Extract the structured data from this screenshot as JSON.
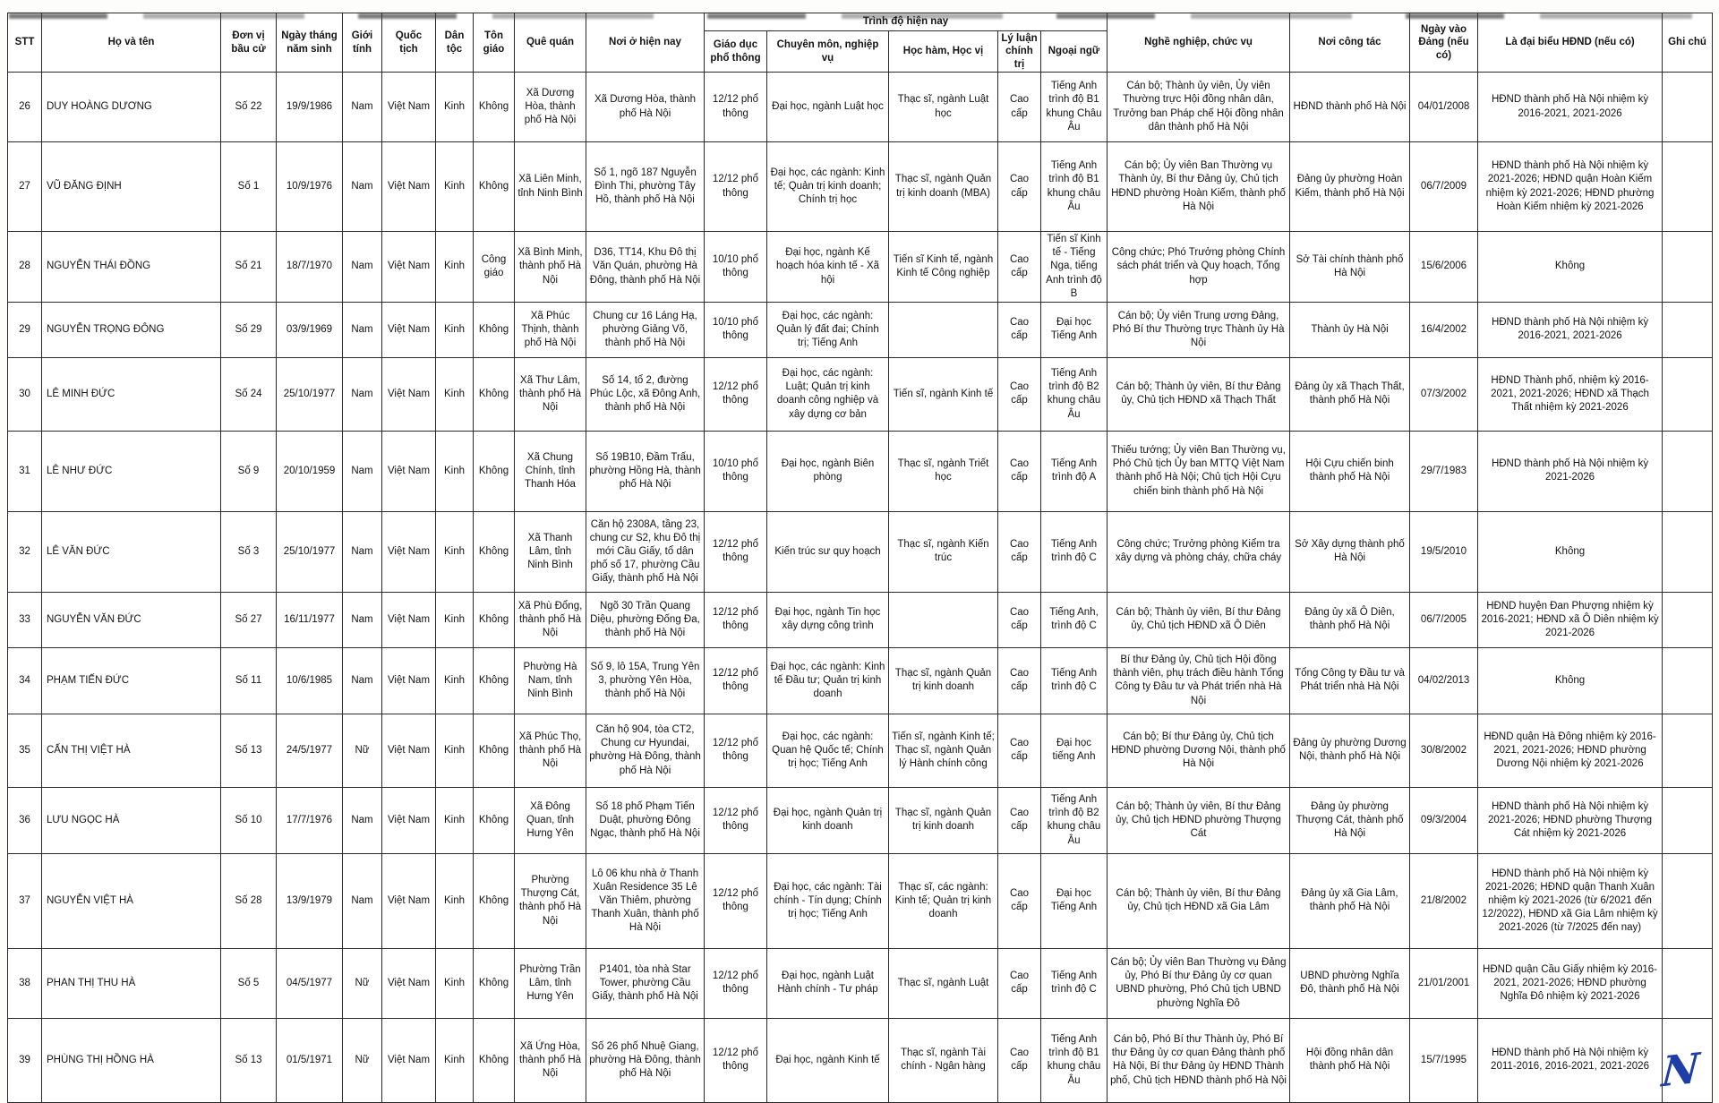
{
  "table": {
    "header": {
      "left": [
        "STT",
        "Họ và tên",
        "Đơn vị bầu cử",
        "Ngày tháng năm sinh",
        "Giới tính",
        "Quốc tịch",
        "Dân tộc",
        "Tôn giáo",
        "Quê quán",
        "Nơi ở hiện nay"
      ],
      "group_label": "Trình độ hiện nay",
      "group_children": [
        "Giáo dục phổ thông",
        "Chuyên môn, nghiệp vụ",
        "Học hàm, Học vị",
        "Lý luận chính trị",
        "Ngoại ngữ"
      ],
      "right": [
        "Nghề nghiệp, chức vụ",
        "Nơi công tác",
        "Ngày vào Đảng (nếu có)",
        "Là đại biểu HĐND (nếu có)",
        "Ghi chú"
      ]
    },
    "col_keys": [
      "stt",
      "ho-va-ten",
      "don-vi-bau-cu",
      "ngay-sinh",
      "gioi-tinh",
      "quoc-tich",
      "dan-toc",
      "ton-giao",
      "que-quan",
      "noi-o-hien-nay",
      "giao-duc-pho-thong",
      "chuyen-mon-nghiep-vu",
      "hoc-ham-hoc-vi",
      "ly-luan-chinh-tri",
      "ngoai-ngu",
      "nghe-nghiep-chuc-vu",
      "noi-cong-tac",
      "ngay-vao-dang",
      "dai-bieu-hdnd",
      "ghi-chu"
    ],
    "rows": [
      [
        "26",
        "DUY HOÀNG DƯƠNG",
        "Số 22",
        "19/9/1986",
        "Nam",
        "Việt Nam",
        "Kinh",
        "Không",
        "Xã Dương Hòa, thành phố Hà Nội",
        "Xã Dương Hòa, thành phố Hà Nội",
        "12/12 phổ thông",
        "Đại học, ngành Luật học",
        "Thạc sĩ, ngành Luật học",
        "Cao cấp",
        "Tiếng Anh trình độ B1 khung Châu Âu",
        "Cán bộ; Thành ủy viên, Ủy viên Thường trực Hội đồng nhân dân, Trưởng ban Pháp chế Hội đồng nhân dân thành phố Hà Nội",
        "HĐND thành phố Hà Nội",
        "04/01/2008",
        "HĐND thành phố Hà Nội nhiệm kỳ 2016-2021, 2021-2026",
        ""
      ],
      [
        "27",
        "VŨ ĐĂNG ĐỊNH",
        "Số 1",
        "10/9/1976",
        "Nam",
        "Việt Nam",
        "Kinh",
        "Không",
        "Xã Liên Minh, tỉnh Ninh Bình",
        "Số 1, ngõ 187 Nguyễn Đình Thi, phường Tây Hồ, thành phố Hà Nội",
        "12/12 phổ thông",
        "Đại học, các ngành: Kinh tế; Quản trị kinh doanh; Chính trị học",
        "Thạc sĩ, ngành Quản trị kinh doanh (MBA)",
        "Cao cấp",
        "Tiếng Anh trình độ B1 khung châu Âu",
        "Cán bộ; Ủy viên Ban Thường vụ Thành ủy, Bí thư Đảng ủy, Chủ tịch HĐND phường Hoàn Kiếm, thành phố Hà Nội",
        "Đảng ủy phường Hoàn Kiếm, thành phố Hà Nội",
        "06/7/2009",
        "HĐND thành phố Hà Nội nhiệm kỳ 2021-2026; HĐND quận Hoàn Kiếm nhiệm kỳ 2021-2026; HĐND phường Hoàn Kiếm nhiệm kỳ 2021-2026",
        ""
      ],
      [
        "28",
        "NGUYỄN THÁI ĐỒNG",
        "Số 21",
        "18/7/1970",
        "Nam",
        "Việt Nam",
        "Kinh",
        "Công giáo",
        "Xã Bình Minh, thành phố Hà Nội",
        "D36, TT14, Khu Đô thị Văn Quán, phường Hà Đông, thành phố Hà Nội",
        "10/10 phổ thông",
        "Đại học, ngành Kế hoạch hóa kinh tế - Xã hội",
        "Tiến sĩ Kinh tế, ngành Kinh tế Công nghiệp",
        "Cao cấp",
        "Tiến sĩ Kinh tế - Tiếng Nga, tiếng Anh trình độ B",
        "Công chức; Phó Trưởng phòng Chính sách phát triển và Quy hoạch, Tổng hợp",
        "Sở Tài chính thành phố Hà Nội",
        "15/6/2006",
        "Không",
        ""
      ],
      [
        "29",
        "NGUYỄN TRỌNG ĐÔNG",
        "Số 29",
        "03/9/1969",
        "Nam",
        "Việt Nam",
        "Kinh",
        "Không",
        "Xã Phúc Thịnh, thành phố Hà Nội",
        "Chung cư 16 Láng Hạ, phường Giảng Võ, thành phố Hà Nội",
        "10/10 phổ thông",
        "Đại học, các ngành: Quản lý đất đai; Chính trị; Tiếng Anh",
        "",
        "Cao cấp",
        "Đại học Tiếng Anh",
        "Cán bộ; Ủy viên Trung ương Đảng, Phó Bí thư Thường trực Thành ủy Hà Nội",
        "Thành ủy Hà Nội",
        "16/4/2002",
        "HĐND thành phố Hà Nội nhiệm kỳ 2016-2021, 2021-2026",
        ""
      ],
      [
        "30",
        "LÊ MINH ĐỨC",
        "Số 24",
        "25/10/1977",
        "Nam",
        "Việt Nam",
        "Kinh",
        "Không",
        "Xã Thư Lâm, thành phố Hà Nội",
        "Số 14, tổ 2, đường Phúc Lộc, xã Đông Anh, thành phố Hà Nội",
        "12/12 phổ thông",
        "Đại học, các ngành: Luật; Quản trị kinh doanh công nghiệp và xây dựng cơ bản",
        "Tiến sĩ, ngành Kinh tế",
        "Cao cấp",
        "Tiếng Anh trình độ B2 khung châu Âu",
        "Cán bộ; Thành ủy viên, Bí thư Đảng ủy, Chủ tịch HĐND xã Thạch Thất",
        "Đảng ủy xã Thạch Thất, thành phố Hà Nội",
        "07/3/2002",
        "HĐND Thành phố, nhiệm kỳ 2016-2021, 2021-2026; HĐND xã Thạch Thất nhiệm kỳ 2021-2026",
        ""
      ],
      [
        "31",
        "LÊ NHƯ ĐỨC",
        "Số 9",
        "20/10/1959",
        "Nam",
        "Việt Nam",
        "Kinh",
        "Không",
        "Xã Chung Chính, tỉnh Thanh Hóa",
        "Số 19B10, Đầm Trấu, phường Hồng Hà, thành phố Hà Nội",
        "10/10 phổ thông",
        "Đại học, ngành Biên phòng",
        "Thạc sĩ, ngành Triết học",
        "Cao cấp",
        "Tiếng Anh trình độ A",
        "Thiếu tướng; Ủy viên Ban Thường vụ, Phó Chủ tịch Ủy ban MTTQ Việt Nam thành phố Hà Nội; Chủ tịch Hội Cựu chiến binh thành phố Hà Nội",
        "Hội Cựu chiến binh thành phố Hà Nội",
        "29/7/1983",
        "HĐND thành phố Hà Nội nhiệm kỳ 2021-2026",
        ""
      ],
      [
        "32",
        "LÊ VĂN ĐỨC",
        "Số 3",
        "25/10/1977",
        "Nam",
        "Việt Nam",
        "Kinh",
        "Không",
        "Xã Thanh Lâm, tỉnh Ninh Bình",
        "Căn hộ 2308A, tầng 23, chung cư S2, khu Đô thị mới Cầu Giấy, tổ dân phố số 17, phường Cầu Giấy, thành phố Hà Nội",
        "12/12 phổ thông",
        "Kiến trúc sư quy hoạch",
        "Thạc sĩ, ngành Kiến trúc",
        "Cao cấp",
        "Tiếng Anh trình độ C",
        "Công chức; Trưởng phòng Kiểm tra xây dựng và phòng cháy, chữa cháy",
        "Sở Xây dựng thành phố Hà Nội",
        "19/5/2010",
        "Không",
        ""
      ],
      [
        "33",
        "NGUYỄN VĂN ĐỨC",
        "Số 27",
        "16/11/1977",
        "Nam",
        "Việt Nam",
        "Kinh",
        "Không",
        "Xã Phù Đổng, thành phố Hà Nội",
        "Ngõ 30 Trần Quang Diệu, phường Đống Đa, thành phố Hà Nội",
        "12/12 phổ thông",
        "Đại học, ngành Tin học xây dựng công trình",
        "",
        "Cao cấp",
        "Tiếng Anh, trình độ C",
        "Cán bộ; Thành ủy viên, Bí thư Đảng ủy, Chủ tịch HĐND xã Ô Diên",
        "Đảng ủy xã Ô Diên, thành phố Hà Nội",
        "06/7/2005",
        "HĐND huyện Đan Phượng nhiệm kỳ 2016-2021; HĐND xã Ô Diên nhiệm kỳ 2021-2026",
        ""
      ],
      [
        "34",
        "PHẠM TIẾN ĐỨC",
        "Số 11",
        "10/6/1985",
        "Nam",
        "Việt Nam",
        "Kinh",
        "Không",
        "Phường Hà Nam, tỉnh Ninh Bình",
        "Số 9, lô 15A, Trung Yên 3, phường Yên Hòa, thành phố Hà Nội",
        "12/12 phổ thông",
        "Đại học, các ngành: Kinh tế Đầu tư; Quản trị kinh doanh",
        "Thạc sĩ, ngành Quản trị kinh doanh",
        "Cao cấp",
        "Tiếng Anh trình độ C",
        "Bí thư Đảng ủy, Chủ tịch Hội đồng thành viên, phụ trách điều hành Tổng Công ty Đầu tư và Phát triển nhà Hà Nội",
        "Tổng Công ty Đầu tư và Phát triển nhà Hà Nội",
        "04/02/2013",
        "Không",
        ""
      ],
      [
        "35",
        "CẤN THỊ VIỆT HÀ",
        "Số 13",
        "24/5/1977",
        "Nữ",
        "Việt Nam",
        "Kinh",
        "Không",
        "Xã Phúc Thọ, thành phố Hà Nội",
        "Căn hộ 904, tòa CT2, Chung cư Hyundai, phường Hà Đông, thành phố Hà Nội",
        "12/12 phổ thông",
        "Đại học, các ngành: Quan hệ Quốc tế; Chính trị học; Tiếng Anh",
        "Tiến sĩ, ngành Kinh tế; Thạc sĩ, ngành Quản lý Hành chính công",
        "Cao cấp",
        "Đại học tiếng Anh",
        "Cán bộ; Bí thư Đảng ủy, Chủ tịch HĐND phường Dương Nội, thành phố Hà Nội",
        "Đảng ủy phường Dương Nội, thành phố Hà Nội",
        "30/8/2002",
        "HĐND quận Hà Đông nhiệm kỳ 2016-2021, 2021-2026; HĐND phường Dương Nội nhiệm kỳ 2021-2026",
        ""
      ],
      [
        "36",
        "LƯU NGỌC HÀ",
        "Số 10",
        "17/7/1976",
        "Nam",
        "Việt Nam",
        "Kinh",
        "Không",
        "Xã Đông Quan, tỉnh Hưng Yên",
        "Số 18 phố Phạm Tiến Duật, phường Đông Ngạc, thành phố Hà Nội",
        "12/12 phổ thông",
        "Đại học, ngành Quản trị kinh doanh",
        "Thạc sĩ, ngành Quản trị kinh doanh",
        "Cao cấp",
        "Tiếng Anh trình độ B2 khung châu Âu",
        "Cán bộ; Thành ủy viên, Bí thư Đảng ủy, Chủ tịch HĐND phường Thượng Cát",
        "Đảng ủy phường Thượng Cát, thành phố Hà Nội",
        "09/3/2004",
        "HĐND thành phố Hà Nội nhiệm kỳ 2021-2026; HĐND phường Thượng Cát nhiệm kỳ 2021-2026",
        ""
      ],
      [
        "37",
        "NGUYỄN VIỆT HÀ",
        "Số 28",
        "13/9/1979",
        "Nam",
        "Việt Nam",
        "Kinh",
        "Không",
        "Phường Thượng Cát, thành phố Hà Nội",
        "Lô 06 khu nhà ở Thanh Xuân Residence 35 Lê Văn Thiêm, phường Thanh Xuân, thành phố Hà Nội",
        "12/12 phổ thông",
        "Đại học, các ngành: Tài chính - Tín dụng; Chính trị học; Tiếng Anh",
        "Thạc sĩ, các ngành: Kinh tế; Quản trị kinh doanh",
        "Cao cấp",
        "Đại học Tiếng Anh",
        "Cán bộ; Thành ủy viên, Bí thư Đảng ủy, Chủ tịch HĐND xã Gia Lâm",
        "Đảng ủy xã Gia Lâm, thành phố Hà Nội",
        "21/8/2002",
        "HĐND thành phố Hà Nội nhiệm kỳ 2021-2026; HĐND quận Thanh Xuân nhiệm kỳ 2021-2026 (từ 6/2021 đến 12/2022), HĐND xã Gia Lâm nhiệm kỳ 2021-2026 (từ 7/2025 đến nay)",
        ""
      ],
      [
        "38",
        "PHAN THỊ THU HÀ",
        "Số 5",
        "04/5/1977",
        "Nữ",
        "Việt Nam",
        "Kinh",
        "Không",
        "Phường Trần Lâm, tỉnh Hưng Yên",
        "P1401, tòa nhà Star Tower, phường Cầu Giấy, thành phố Hà Nội",
        "12/12 phổ thông",
        "Đại học, ngành Luật Hành chính - Tư pháp",
        "Thạc sĩ, ngành Luật",
        "Cao cấp",
        "Tiếng Anh trình độ C",
        "Cán bộ; Ủy viên Ban Thường vụ Đảng ủy, Phó Bí thư Đảng ủy cơ quan UBND phường, Phó Chủ tịch UBND phường Nghĩa Đô",
        "UBND phường Nghĩa Đô, thành phố Hà Nội",
        "21/01/2001",
        "HĐND quận Cầu Giấy nhiệm kỳ 2016-2021, 2021-2026; HĐND phường Nghĩa Đô nhiệm kỳ 2021-2026",
        ""
      ],
      [
        "39",
        "PHÙNG THỊ HỒNG HÀ",
        "Số 13",
        "01/5/1971",
        "Nữ",
        "Việt Nam",
        "Kinh",
        "Không",
        "Xã Ứng Hòa, thành phố Hà Nội",
        "Số 26 phố Nhuệ Giang, phường Hà Đông, thành phố Hà Nội",
        "12/12 phổ thông",
        "Đại học, ngành Kinh tế",
        "Thạc sĩ, ngành Tài chính - Ngân hàng",
        "Cao cấp",
        "Tiếng Anh trình độ B1 khung châu Âu",
        "Cán bộ, Phó Bí thư Thành ủy, Phó Bí thư Đảng ủy cơ quan Đảng thành phố Hà Nội, Bí thư Đảng ủy HĐND Thành phố, Chủ tịch HĐND thành phố Hà Nội",
        "Hội đồng nhân dân thành phố Hà Nội",
        "15/7/1995",
        "HĐND thành phố Hà Nội nhiệm kỳ 2011-2016, 2016-2021, 2021-2026",
        ""
      ]
    ]
  },
  "signature_mark": "N",
  "colors": {
    "ink": "#131313",
    "border": "#2a2a2a",
    "signature_blue": "#1d3da8",
    "paper": "#ffffff"
  }
}
